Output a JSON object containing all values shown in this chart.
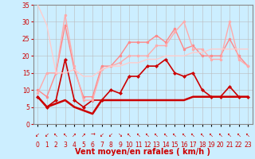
{
  "x": [
    0,
    1,
    2,
    3,
    4,
    5,
    6,
    7,
    8,
    9,
    10,
    11,
    12,
    13,
    14,
    15,
    16,
    17,
    18,
    19,
    20,
    21,
    22,
    23
  ],
  "series": [
    {
      "name": "line1_dark_rafales",
      "color": "#cc0000",
      "linewidth": 1.2,
      "marker": "D",
      "markersize": 2.0,
      "y": [
        8,
        5,
        7,
        19,
        7,
        5,
        7,
        7,
        10,
        9,
        14,
        14,
        17,
        17,
        19,
        15,
        14,
        15,
        10,
        8,
        8,
        11,
        8,
        8
      ]
    },
    {
      "name": "line2_dark_moyen",
      "color": "#cc0000",
      "linewidth": 1.8,
      "marker": null,
      "markersize": 0,
      "y": [
        8,
        5,
        6,
        7,
        5,
        4,
        3,
        7,
        7,
        7,
        7,
        7,
        7,
        7,
        7,
        7,
        7,
        8,
        8,
        8,
        8,
        8,
        8,
        8
      ]
    },
    {
      "name": "line3_medium",
      "color": "#ff8888",
      "linewidth": 1.0,
      "marker": "o",
      "markersize": 2.0,
      "y": [
        10,
        8,
        15,
        29,
        16,
        8,
        8,
        17,
        17,
        20,
        24,
        24,
        24,
        26,
        24,
        28,
        22,
        23,
        20,
        20,
        20,
        25,
        20,
        17
      ]
    },
    {
      "name": "line4_light",
      "color": "#ffaaaa",
      "linewidth": 1.0,
      "marker": "o",
      "markersize": 2.0,
      "y": [
        9,
        15,
        15,
        32,
        17,
        7,
        7,
        16,
        17,
        18,
        20,
        20,
        20,
        23,
        23,
        27,
        30,
        22,
        22,
        19,
        19,
        30,
        19,
        17
      ]
    },
    {
      "name": "line5_lightest",
      "color": "#ffcccc",
      "linewidth": 1.0,
      "marker": null,
      "markersize": 0,
      "y": [
        35,
        29,
        15,
        15,
        16,
        14,
        14,
        16,
        17,
        17,
        18,
        18,
        19,
        19,
        20,
        20,
        20,
        21,
        21,
        22,
        22,
        22,
        22,
        22
      ]
    }
  ],
  "xlabel": "Vent moyen/en rafales ( km/h )",
  "xlim": [
    -0.5,
    23.5
  ],
  "ylim": [
    0,
    35
  ],
  "yticks": [
    0,
    5,
    10,
    15,
    20,
    25,
    30,
    35
  ],
  "xticks": [
    0,
    1,
    2,
    3,
    4,
    5,
    6,
    7,
    8,
    9,
    10,
    11,
    12,
    13,
    14,
    15,
    16,
    17,
    18,
    19,
    20,
    21,
    22,
    23
  ],
  "bg_color": "#cceeff",
  "grid_color": "#bbbbbb",
  "tick_label_fontsize": 5.5,
  "xlabel_fontsize": 7,
  "arrow_chars": [
    "↙",
    "↙",
    "↖",
    "↖",
    "↗",
    "↗",
    "→",
    "↙",
    "↙",
    "↘",
    "↖",
    "↖",
    "↖",
    "↖",
    "↖",
    "↖",
    "↖",
    "↖",
    "↖",
    "↖",
    "↖",
    "↖",
    "↖",
    "↖"
  ]
}
